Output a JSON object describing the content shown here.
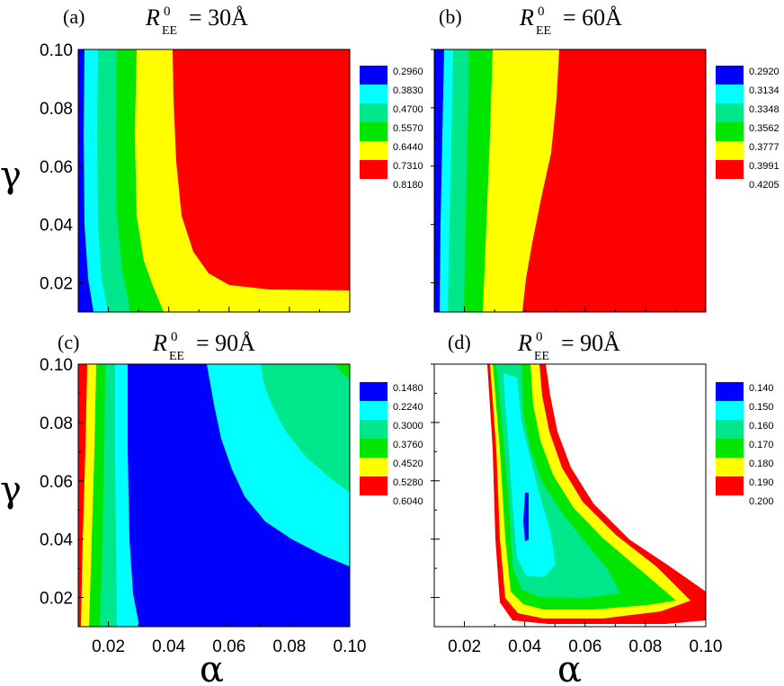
{
  "chart_data": [
    {
      "type": "contour",
      "panel": "(a)",
      "title_var": "R",
      "title_sup": "0",
      "title_sub": "EE",
      "title_value": "= 30Å",
      "xlim": [
        0.01,
        0.1
      ],
      "ylim": [
        0.01,
        0.1
      ],
      "xlabel": "",
      "ylabel": "γ",
      "xticks": [],
      "yticks": [
        "0.10",
        "0.08",
        "0.06",
        "0.04",
        "0.02"
      ],
      "levels": [
        "0.2960",
        "0.3830",
        "0.4700",
        "0.5570",
        "0.6440",
        "0.7310",
        "0.8180"
      ],
      "colors": [
        "#0000ff",
        "#00ffff",
        "#00e68a",
        "#00e600",
        "#ffff00",
        "#ff0000"
      ]
    },
    {
      "type": "contour",
      "panel": "(b)",
      "title_var": "R",
      "title_sup": "0",
      "title_sub": "EE",
      "title_value": "= 60Å",
      "xlim": [
        0.01,
        0.1
      ],
      "ylim": [
        0.01,
        0.1
      ],
      "xlabel": "",
      "ylabel": "",
      "xticks": [],
      "yticks": [],
      "levels": [
        "0.2920",
        "0.3134",
        "0.3348",
        "0.3562",
        "0.3777",
        "0.3991",
        "0.4205"
      ],
      "colors": [
        "#0000ff",
        "#00ffff",
        "#00e68a",
        "#00e600",
        "#ffff00",
        "#ff0000"
      ]
    },
    {
      "type": "contour",
      "panel": "(c)",
      "title_var": "R",
      "title_sup": "0",
      "title_sub": "EE",
      "title_value": "= 90Å",
      "xlim": [
        0.01,
        0.1
      ],
      "ylim": [
        0.01,
        0.1
      ],
      "xlabel": "α",
      "ylabel": "γ",
      "xticks": [
        "0.02",
        "0.04",
        "0.06",
        "0.08",
        "0.10"
      ],
      "yticks": [
        "0.10",
        "0.08",
        "0.06",
        "0.04",
        "0.02"
      ],
      "levels": [
        "0.1480",
        "0.2240",
        "0.3000",
        "0.3760",
        "0.4520",
        "0.5280",
        "0.6040"
      ],
      "colors": [
        "#0000ff",
        "#00ffff",
        "#00e68a",
        "#00e600",
        "#ffff00",
        "#ff0000"
      ]
    },
    {
      "type": "contour",
      "panel": "(d)",
      "title_var": "R",
      "title_sup": "0",
      "title_sub": "EE",
      "title_value": "= 90Å",
      "xlim": [
        0.01,
        0.1
      ],
      "ylim": [
        0.01,
        0.1
      ],
      "xlabel": "α",
      "ylabel": "",
      "xticks": [
        "0.02",
        "0.04",
        "0.06",
        "0.08",
        "0.10"
      ],
      "yticks": [],
      "levels": [
        "0.140",
        "0.150",
        "0.160",
        "0.170",
        "0.180",
        "0.190",
        "0.200"
      ],
      "colors": [
        "#0000ff",
        "#00ffff",
        "#00e68a",
        "#00e600",
        "#ffff00",
        "#ff0000"
      ]
    }
  ]
}
